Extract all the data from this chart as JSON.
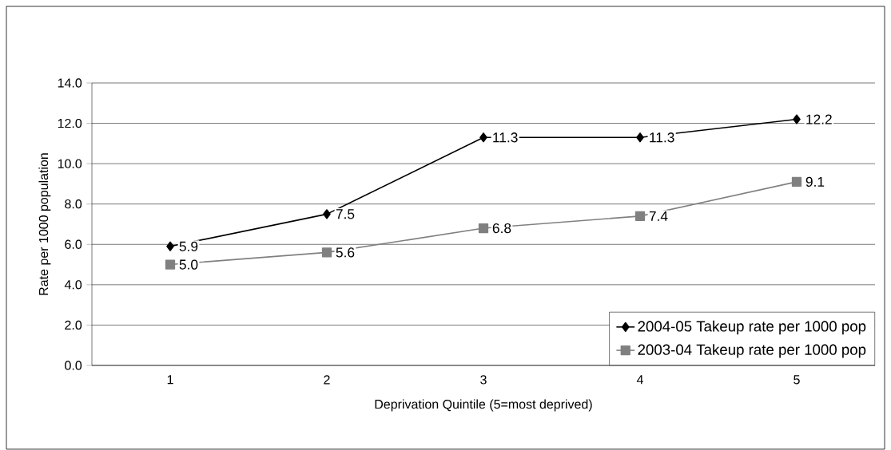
{
  "chart_data": {
    "type": "line",
    "xlabel": "Deprivation Quintile (5=most deprived)",
    "ylabel": "Rate per 1000 population",
    "categories": [
      "1",
      "2",
      "3",
      "4",
      "5"
    ],
    "series": [
      {
        "name": "2004-05 Takeup rate per 1000 pop",
        "color": "#000000",
        "marker": "diamond",
        "values": [
          5.9,
          7.5,
          11.3,
          11.3,
          12.2
        ],
        "value_labels": [
          "5.9",
          "7.5",
          "11.3",
          "11.3",
          "12.2"
        ]
      },
      {
        "name": "2003-04 Takeup rate per 1000 pop",
        "color": "#808080",
        "marker": "square",
        "values": [
          5.0,
          5.6,
          6.8,
          7.4,
          9.1
        ],
        "value_labels": [
          "5.0",
          "5.6",
          "6.8",
          "7.4",
          "9.1"
        ]
      }
    ],
    "ylim": [
      0,
      14
    ],
    "yticks": [
      {
        "value": 0,
        "label": "0.0"
      },
      {
        "value": 2,
        "label": "2.0"
      },
      {
        "value": 4,
        "label": "4.0"
      },
      {
        "value": 6,
        "label": "6.0"
      },
      {
        "value": 8,
        "label": "8.0"
      },
      {
        "value": 10,
        "label": "10.0"
      },
      {
        "value": 12,
        "label": "12.0"
      },
      {
        "value": 14,
        "label": "14.0"
      }
    ],
    "grid": "y",
    "legend": "bottom right",
    "line_style": "solid"
  }
}
